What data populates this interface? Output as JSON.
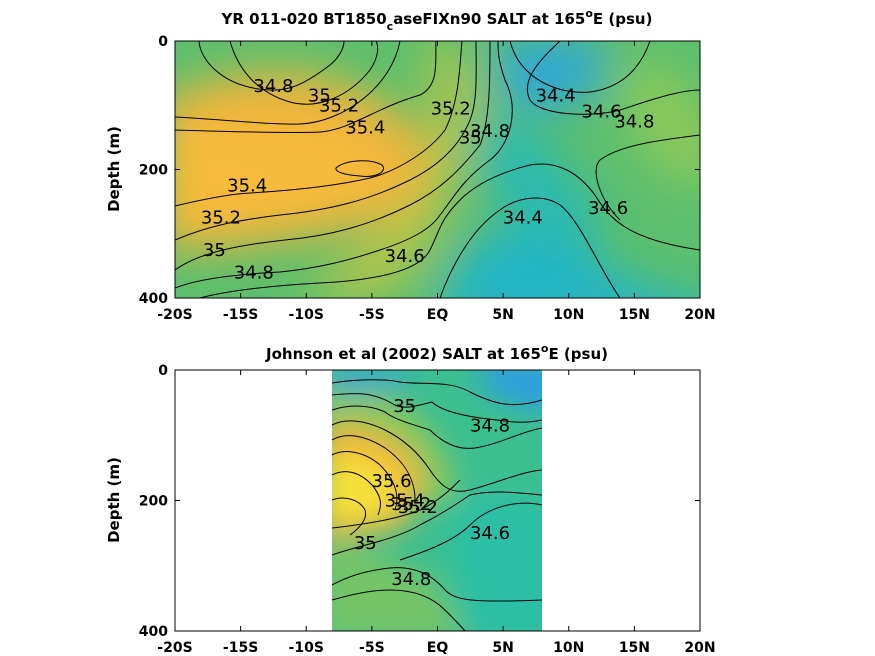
{
  "chart_data": [
    {
      "type": "contour",
      "title": "YR 011-020 BT1850_caseFIXn90 SALT at 165°E (psu)",
      "title_parts": {
        "a": "YR 011-020 BT1850",
        "sub": "c",
        "b": "aseFIXn90 SALT at 165",
        "sup": "o",
        "c": "E (psu)"
      },
      "xlabel": "",
      "ylabel": "Depth (m)",
      "xlim": [
        -20,
        20
      ],
      "ylim": [
        400,
        0
      ],
      "xticks": [
        -20,
        -15,
        -10,
        -5,
        0,
        5,
        10,
        15,
        20
      ],
      "xtick_labels": [
        "-20S",
        "-15S",
        "-10S",
        "-5S",
        "EQ",
        "5N",
        "10N",
        "15N",
        "20N"
      ],
      "yticks": [
        0,
        200,
        400
      ],
      "ytick_labels": [
        "0",
        "200",
        "400"
      ],
      "data_extent": [
        -20,
        20
      ],
      "contour_labels": [
        {
          "text": "34.8",
          "x": -12.5,
          "y": 70
        },
        {
          "text": "35",
          "x": -9,
          "y": 85
        },
        {
          "text": "35.2",
          "x": -7.5,
          "y": 100
        },
        {
          "text": "35.4",
          "x": -5.5,
          "y": 135
        },
        {
          "text": "35.4",
          "x": -14.5,
          "y": 225
        },
        {
          "text": "35.2",
          "x": -16.5,
          "y": 275
        },
        {
          "text": "35",
          "x": -17,
          "y": 325
        },
        {
          "text": "34.8",
          "x": -14,
          "y": 360
        },
        {
          "text": "34.6",
          "x": -2.5,
          "y": 335
        },
        {
          "text": "35.2",
          "x": 1,
          "y": 105
        },
        {
          "text": "35",
          "x": 2.5,
          "y": 150
        },
        {
          "text": "34.8",
          "x": 4,
          "y": 140
        },
        {
          "text": "34.4",
          "x": 9,
          "y": 85
        },
        {
          "text": "34.6",
          "x": 12.5,
          "y": 110
        },
        {
          "text": "34.8",
          "x": 15,
          "y": 125
        },
        {
          "text": "34.4",
          "x": 6.5,
          "y": 275
        },
        {
          "text": "34.6",
          "x": 13,
          "y": 260
        }
      ]
    },
    {
      "type": "contour",
      "title": "Johnson et al (2002) SALT at 165°E (psu)",
      "title_parts": {
        "a": "Johnson et al (2002) SALT at 165",
        "sup": "o",
        "c": "E (psu)"
      },
      "xlabel": "",
      "ylabel": "Depth (m)",
      "xlim": [
        -20,
        20
      ],
      "ylim": [
        400,
        0
      ],
      "xticks": [
        -20,
        -15,
        -10,
        -5,
        0,
        5,
        10,
        15,
        20
      ],
      "xtick_labels": [
        "-20S",
        "-15S",
        "-10S",
        "-5S",
        "EQ",
        "5N",
        "10N",
        "15N",
        "20N"
      ],
      "yticks": [
        0,
        200,
        400
      ],
      "ytick_labels": [
        "0",
        "200",
        "400"
      ],
      "data_extent": [
        -8,
        8
      ],
      "contour_labels": [
        {
          "text": "35",
          "x": -2.5,
          "y": 55
        },
        {
          "text": "34.8",
          "x": 4,
          "y": 85
        },
        {
          "text": "35.6",
          "x": -3.5,
          "y": 170
        },
        {
          "text": "35.4",
          "x": -2.5,
          "y": 200
        },
        {
          "text": "35.2",
          "x": -2,
          "y": 205
        },
        {
          "text": "35.2",
          "x": -1.5,
          "y": 210
        },
        {
          "text": "35",
          "x": -5.5,
          "y": 265
        },
        {
          "text": "34.6",
          "x": 4,
          "y": 250
        },
        {
          "text": "34.8",
          "x": -2,
          "y": 320
        }
      ]
    }
  ]
}
